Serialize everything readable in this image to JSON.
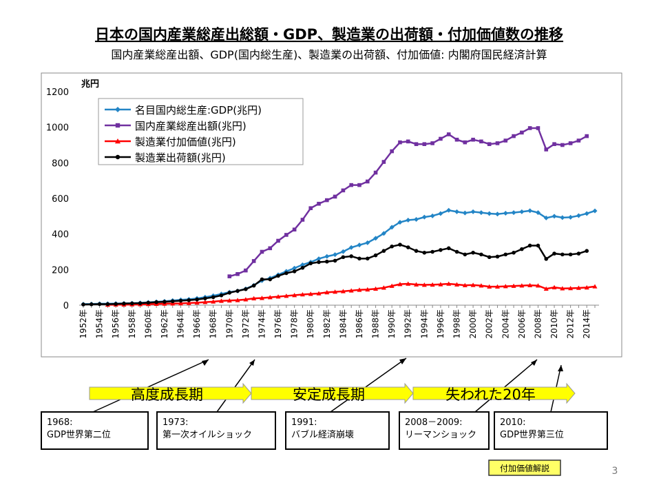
{
  "chart_data": {
    "type": "line",
    "title": "日本の国内産業総産出総額・GDP、製造業の出荷額・付加価値数の推移",
    "subtitle": "国内産業総産出額、GDP(国内総生産)、製造業の出荷額、付加価値: 内閣府国民経済計算",
    "y_label": "兆円",
    "categories": [
      "1952年",
      null,
      "1954年",
      null,
      "1956年",
      null,
      "1958年",
      null,
      "1960年",
      null,
      "1962年",
      null,
      "1964年",
      null,
      "1966年",
      null,
      "1968年",
      null,
      "1970年",
      null,
      "1972年",
      null,
      "1974年",
      null,
      "1976年",
      null,
      "1978年",
      null,
      "1980年",
      null,
      "1982年",
      null,
      "1984年",
      null,
      "1986年",
      null,
      "1988年",
      null,
      "1990年",
      null,
      "1992年",
      null,
      "1994年",
      null,
      "1996年",
      null,
      "1998年",
      null,
      "2000年",
      null,
      "2002年",
      null,
      "2004年",
      null,
      "2006年",
      null,
      "2008年",
      null,
      "2010年",
      null,
      "2012年",
      null,
      "2014年",
      null
    ],
    "series": [
      {
        "name": "名目国内総生産:GDP(兆円)",
        "color": "#2385c6",
        "marker": "diamond",
        "values": [
          6,
          7,
          8,
          8,
          9,
          10,
          11,
          13,
          16,
          19,
          22,
          26,
          30,
          33,
          38,
          45,
          53,
          63,
          73,
          80,
          92,
          112,
          138,
          152,
          171,
          190,
          208,
          227,
          242,
          261,
          274,
          284,
          301,
          324,
          338,
          351,
          376,
          403,
          438,
          466,
          478,
          482,
          495,
          502,
          515,
          533,
          525,
          518,
          525,
          520,
          515,
          512,
          517,
          520,
          525,
          531,
          520,
          490,
          500,
          492,
          494,
          503,
          515,
          530
        ]
      },
      {
        "name": "国内産業総産出額(兆円)",
        "color": "#7030a0",
        "marker": "square",
        "values": [
          null,
          null,
          null,
          null,
          null,
          null,
          null,
          null,
          null,
          null,
          null,
          null,
          null,
          null,
          null,
          null,
          null,
          null,
          162,
          175,
          195,
          248,
          300,
          320,
          362,
          395,
          425,
          480,
          545,
          570,
          590,
          610,
          645,
          675,
          675,
          695,
          745,
          805,
          865,
          915,
          920,
          905,
          905,
          910,
          935,
          960,
          930,
          915,
          930,
          920,
          905,
          910,
          925,
          950,
          970,
          995,
          995,
          875,
          905,
          900,
          910,
          925,
          950,
          null
        ]
      },
      {
        "name": "製造業付加価値(兆円)",
        "color": "#ff0000",
        "marker": "triangle",
        "values": [
          null,
          null,
          null,
          2,
          3,
          3,
          4,
          5,
          6,
          7,
          8,
          9,
          10,
          12,
          14,
          17,
          20,
          24,
          26,
          28,
          32,
          38,
          40,
          44,
          48,
          52,
          56,
          60,
          63,
          66,
          72,
          75,
          78,
          82,
          86,
          88,
          92,
          98,
          108,
          118,
          120,
          116,
          114,
          115,
          117,
          120,
          116,
          112,
          113,
          110,
          104,
          104,
          106,
          108,
          110,
          112,
          110,
          92,
          100,
          94,
          95,
          97,
          99,
          105
        ]
      },
      {
        "name": "製造業出荷額(兆円)",
        "color": "#000000",
        "marker": "circle",
        "values": [
          4,
          5,
          6,
          6,
          7,
          9,
          10,
          11,
          14,
          17,
          19,
          22,
          25,
          28,
          32,
          38,
          45,
          55,
          70,
          80,
          90,
          110,
          145,
          145,
          165,
          180,
          190,
          210,
          235,
          242,
          245,
          250,
          270,
          275,
          262,
          262,
          280,
          305,
          330,
          340,
          325,
          305,
          295,
          300,
          310,
          320,
          300,
          285,
          295,
          285,
          270,
          273,
          285,
          295,
          315,
          335,
          335,
          260,
          290,
          285,
          285,
          290,
          305,
          null
        ]
      }
    ],
    "ylim": [
      0,
      1200
    ],
    "yticks": [
      0,
      200,
      400,
      600,
      800,
      1000,
      1200
    ],
    "grid": false,
    "legend": "upper left"
  },
  "periods": [
    "高度成長期",
    "安定成長期",
    "失われた20年"
  ],
  "events": [
    [
      "1968:",
      "GDP世界第二位"
    ],
    [
      "1973:",
      "第一次オイルショック"
    ],
    [
      "1991:",
      "バブル経済崩壊"
    ],
    [
      "2008－2009:",
      "リーマンショック"
    ],
    [
      "2010:",
      "GDP世界第三位"
    ]
  ],
  "button": "付加価値解説",
  "page_number": "3"
}
